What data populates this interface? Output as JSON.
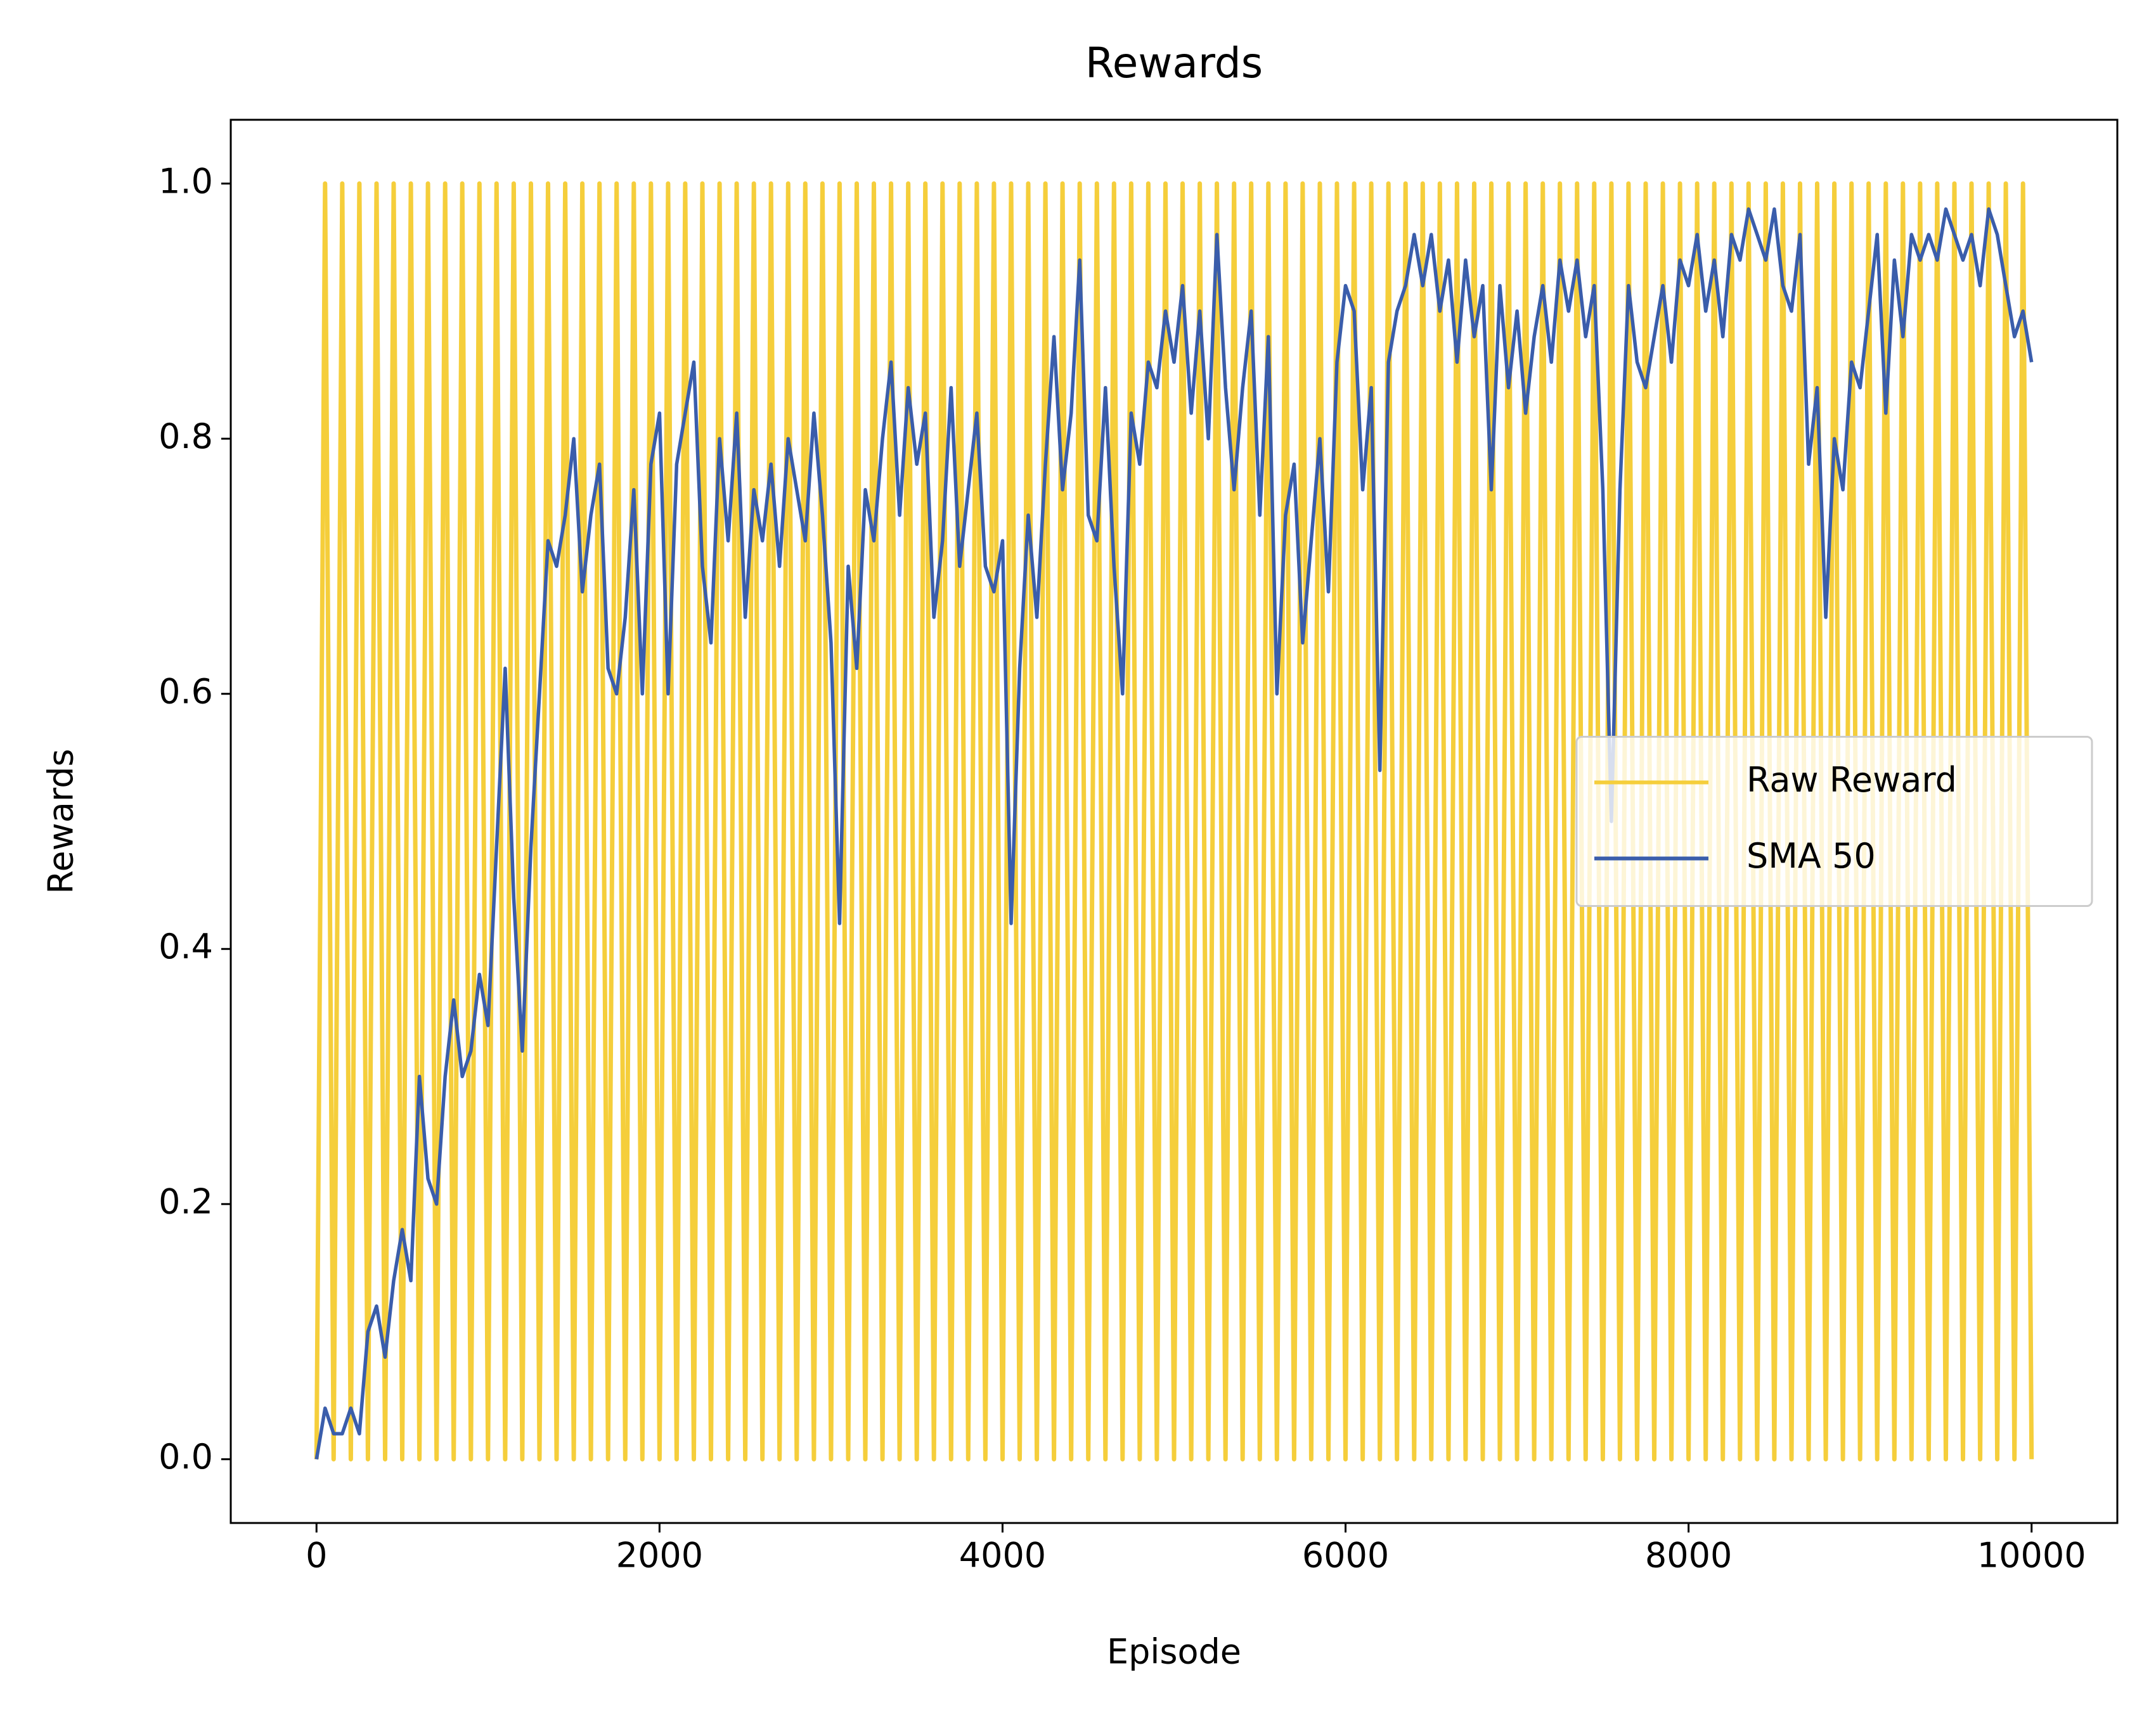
{
  "chart_data": {
    "type": "line",
    "title": "Rewards",
    "xlabel": "Episode",
    "ylabel": "Rewards",
    "x": [
      0,
      50,
      100,
      150,
      200,
      250,
      300,
      350,
      400,
      450,
      500,
      550,
      600,
      650,
      700,
      750,
      800,
      850,
      900,
      950,
      1000,
      1050,
      1100,
      1150,
      1200,
      1250,
      1300,
      1350,
      1400,
      1450,
      1500,
      1550,
      1600,
      1650,
      1700,
      1750,
      1800,
      1850,
      1900,
      1950,
      2000,
      2050,
      2100,
      2150,
      2200,
      2250,
      2300,
      2350,
      2400,
      2450,
      2500,
      2550,
      2600,
      2650,
      2700,
      2750,
      2800,
      2850,
      2900,
      2950,
      3000,
      3050,
      3100,
      3150,
      3200,
      3250,
      3300,
      3350,
      3400,
      3450,
      3500,
      3550,
      3600,
      3650,
      3700,
      3750,
      3800,
      3850,
      3900,
      3950,
      4000,
      4050,
      4100,
      4150,
      4200,
      4250,
      4300,
      4350,
      4400,
      4450,
      4500,
      4550,
      4600,
      4650,
      4700,
      4750,
      4800,
      4850,
      4900,
      4950,
      5000,
      5050,
      5100,
      5150,
      5200,
      5250,
      5300,
      5350,
      5400,
      5450,
      5500,
      5550,
      5600,
      5650,
      5700,
      5750,
      5800,
      5850,
      5900,
      5950,
      6000,
      6050,
      6100,
      6150,
      6200,
      6250,
      6300,
      6350,
      6400,
      6450,
      6500,
      6550,
      6600,
      6650,
      6700,
      6750,
      6800,
      6850,
      6900,
      6950,
      7000,
      7050,
      7100,
      7150,
      7200,
      7250,
      7300,
      7350,
      7400,
      7450,
      7500,
      7550,
      7600,
      7650,
      7700,
      7750,
      7800,
      7850,
      7900,
      7950,
      8000,
      8050,
      8100,
      8150,
      8200,
      8250,
      8300,
      8350,
      8400,
      8450,
      8500,
      8550,
      8600,
      8650,
      8700,
      8750,
      8800,
      8850,
      8900,
      8950,
      9000,
      9050,
      9100,
      9150,
      9200,
      9250,
      9300,
      9350,
      9400,
      9450,
      9500,
      9550,
      9600,
      9650,
      9700,
      9750,
      9800,
      9850,
      9900,
      9950,
      10000
    ],
    "series": [
      {
        "name": "Raw Reward",
        "color": "#f5ce3b",
        "values": [
          0,
          1,
          0,
          1,
          0,
          1,
          0,
          1,
          0,
          1,
          0,
          1,
          0,
          1,
          0,
          1,
          0,
          1,
          0,
          1,
          0,
          1,
          0,
          1,
          0,
          1,
          0,
          1,
          0,
          1,
          0,
          1,
          0,
          1,
          0,
          1,
          0,
          1,
          0,
          1,
          0,
          1,
          0,
          1,
          0,
          1,
          0,
          1,
          0,
          1,
          0,
          1,
          0,
          1,
          0,
          1,
          0,
          1,
          0,
          1,
          0,
          1,
          0,
          1,
          0,
          1,
          0,
          1,
          0,
          1,
          0,
          1,
          0,
          1,
          0,
          1,
          0,
          1,
          0,
          1,
          0,
          1,
          0,
          1,
          0,
          1,
          0,
          1,
          0,
          1,
          0,
          1,
          0,
          1,
          0,
          1,
          0,
          1,
          0,
          1,
          0,
          1,
          0,
          1,
          0,
          1,
          0,
          1,
          0,
          1,
          0,
          1,
          0,
          1,
          0,
          1,
          0,
          1,
          0,
          1,
          0,
          1,
          0,
          1,
          0,
          1,
          0,
          1,
          0,
          1,
          0,
          1,
          0,
          1,
          0,
          1,
          0,
          1,
          0,
          1,
          0,
          1,
          0,
          1,
          0,
          1,
          0,
          1,
          0,
          1,
          0,
          1,
          0,
          1,
          0,
          1,
          0,
          1,
          0,
          1,
          0,
          1,
          0,
          1,
          0,
          1,
          0,
          1,
          0,
          1,
          0,
          1,
          0,
          1,
          0,
          1,
          0,
          1,
          0,
          1,
          0,
          1,
          0,
          1,
          0,
          1,
          0,
          1,
          0,
          1,
          0,
          1,
          0,
          1,
          0,
          1,
          0,
          1,
          0,
          1,
          0
        ]
      },
      {
        "name": "SMA 50",
        "color": "#3a5dab",
        "values": [
          0,
          0.04,
          0.02,
          0.02,
          0.04,
          0.02,
          0.1,
          0.12,
          0.08,
          0.14,
          0.18,
          0.14,
          0.3,
          0.22,
          0.2,
          0.3,
          0.36,
          0.3,
          0.32,
          0.38,
          0.34,
          0.48,
          0.62,
          0.44,
          0.32,
          0.48,
          0.6,
          0.72,
          0.7,
          0.74,
          0.8,
          0.68,
          0.74,
          0.78,
          0.62,
          0.6,
          0.66,
          0.76,
          0.6,
          0.78,
          0.82,
          0.6,
          0.78,
          0.82,
          0.86,
          0.7,
          0.64,
          0.8,
          0.72,
          0.82,
          0.66,
          0.76,
          0.72,
          0.78,
          0.7,
          0.8,
          0.76,
          0.72,
          0.82,
          0.74,
          0.64,
          0.42,
          0.7,
          0.62,
          0.76,
          0.72,
          0.8,
          0.86,
          0.74,
          0.84,
          0.78,
          0.82,
          0.66,
          0.72,
          0.84,
          0.7,
          0.76,
          0.82,
          0.7,
          0.68,
          0.72,
          0.42,
          0.62,
          0.74,
          0.66,
          0.78,
          0.88,
          0.76,
          0.82,
          0.94,
          0.74,
          0.72,
          0.84,
          0.7,
          0.6,
          0.82,
          0.78,
          0.86,
          0.84,
          0.9,
          0.86,
          0.92,
          0.82,
          0.9,
          0.8,
          0.96,
          0.84,
          0.76,
          0.84,
          0.9,
          0.74,
          0.88,
          0.6,
          0.74,
          0.78,
          0.64,
          0.72,
          0.8,
          0.68,
          0.86,
          0.92,
          0.9,
          0.76,
          0.84,
          0.54,
          0.86,
          0.9,
          0.92,
          0.96,
          0.92,
          0.96,
          0.9,
          0.94,
          0.86,
          0.94,
          0.88,
          0.92,
          0.76,
          0.92,
          0.84,
          0.9,
          0.82,
          0.88,
          0.92,
          0.86,
          0.94,
          0.9,
          0.94,
          0.88,
          0.92,
          0.76,
          0.5,
          0.76,
          0.92,
          0.86,
          0.84,
          0.88,
          0.92,
          0.86,
          0.94,
          0.92,
          0.96,
          0.9,
          0.94,
          0.88,
          0.96,
          0.94,
          0.98,
          0.96,
          0.94,
          0.98,
          0.92,
          0.9,
          0.96,
          0.78,
          0.84,
          0.66,
          0.8,
          0.76,
          0.86,
          0.84,
          0.9,
          0.96,
          0.82,
          0.94,
          0.88,
          0.96,
          0.94,
          0.96,
          0.94,
          0.98,
          0.96,
          0.94,
          0.96,
          0.92,
          0.98,
          0.96,
          0.92,
          0.88,
          0.9,
          0.86
        ]
      }
    ],
    "xlim": [
      -500,
      10500
    ],
    "xticks": [
      0,
      2000,
      4000,
      6000,
      8000,
      10000
    ],
    "ylim": [
      -0.05,
      1.05
    ],
    "yticks": [
      {
        "value": 0,
        "label": "0.0"
      },
      {
        "value": 0.2,
        "label": "0.2"
      },
      {
        "value": 0.4,
        "label": "0.4"
      },
      {
        "value": 0.6,
        "label": "0.6"
      },
      {
        "value": 0.8,
        "label": "0.8"
      },
      {
        "value": 1,
        "label": "1.0"
      }
    ],
    "legend": "center right"
  }
}
